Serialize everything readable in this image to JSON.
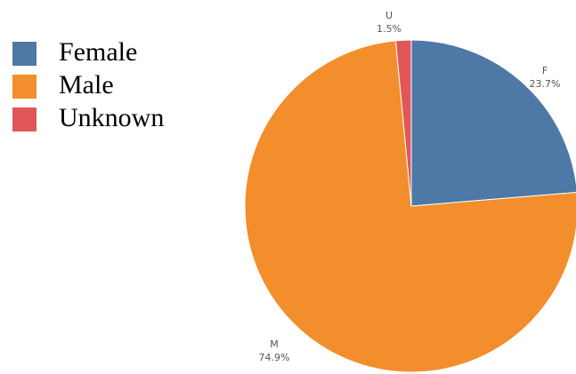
{
  "chart_data": {
    "type": "pie",
    "title": "",
    "legend": {
      "placement": "top-left",
      "entries": [
        "Female",
        "Male",
        "Unknown"
      ]
    },
    "slices": [
      {
        "legend": "Female",
        "code": "F",
        "value": 23.7,
        "percent_label": "23.7%",
        "color": "#4e79a7"
      },
      {
        "legend": "Male",
        "code": "M",
        "value": 74.9,
        "percent_label": "74.9%",
        "color": "#f28e2b"
      },
      {
        "legend": "Unknown",
        "code": "U",
        "value": 1.5,
        "percent_label": "1.5%",
        "color": "#e15759"
      }
    ]
  }
}
